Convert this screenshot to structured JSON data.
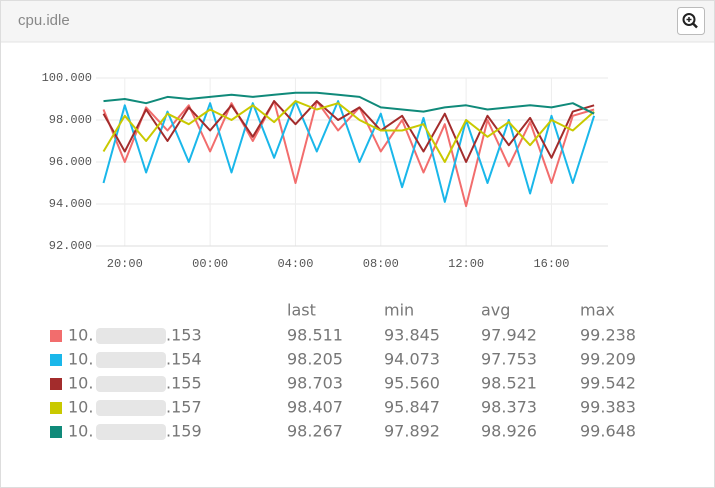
{
  "panel": {
    "title": "cpu.idle"
  },
  "chart_data": {
    "type": "line",
    "categories": [
      null,
      "20:00",
      null,
      null,
      null,
      "00:00",
      null,
      null,
      null,
      "04:00",
      null,
      null,
      null,
      "08:00",
      null,
      null,
      null,
      "12:00",
      null,
      null,
      null,
      "16:00",
      null,
      null
    ],
    "series": [
      {
        "color": "#f26d6d",
        "values": [
          98.5,
          96.0,
          98.6,
          97.5,
          98.7,
          96.5,
          98.8,
          97.0,
          98.9,
          95.0,
          98.9,
          97.5,
          98.6,
          96.5,
          98.0,
          95.5,
          97.8,
          93.9,
          98.0,
          95.8,
          97.9,
          95.0,
          98.2,
          98.5
        ]
      },
      {
        "color": "#1ab7ea",
        "values": [
          95.0,
          98.7,
          95.5,
          98.4,
          96.0,
          98.8,
          95.5,
          98.8,
          96.2,
          98.9,
          96.5,
          98.9,
          96.0,
          98.3,
          94.8,
          98.1,
          94.1,
          98.0,
          95.0,
          98.0,
          94.5,
          98.2,
          95.0,
          98.2
        ]
      },
      {
        "color": "#a32c2c",
        "values": [
          98.3,
          96.5,
          98.5,
          97.0,
          98.6,
          97.5,
          98.7,
          97.2,
          98.9,
          97.8,
          98.9,
          98.0,
          98.6,
          97.5,
          98.2,
          96.5,
          98.3,
          96.0,
          98.2,
          96.8,
          98.1,
          96.2,
          98.4,
          98.7
        ]
      },
      {
        "color": "#c9c900",
        "values": [
          96.5,
          98.2,
          97.0,
          98.3,
          97.8,
          98.5,
          98.0,
          98.7,
          97.9,
          98.9,
          98.5,
          98.8,
          98.0,
          97.5,
          97.5,
          97.8,
          96.0,
          98.0,
          97.2,
          97.9,
          96.8,
          98.0,
          97.5,
          98.4
        ]
      },
      {
        "color": "#108a7a",
        "values": [
          98.9,
          99.0,
          98.8,
          99.1,
          99.0,
          99.1,
          99.2,
          99.1,
          99.2,
          99.3,
          99.3,
          99.2,
          99.1,
          98.6,
          98.5,
          98.4,
          98.6,
          98.7,
          98.5,
          98.6,
          98.7,
          98.6,
          98.8,
          98.3
        ]
      }
    ],
    "ylim": [
      92,
      100
    ],
    "yticks": [
      {
        "value": 92,
        "label": "92.000"
      },
      {
        "value": 94,
        "label": "94.000"
      },
      {
        "value": 96,
        "label": "96.000"
      },
      {
        "value": 98,
        "label": "98.000"
      },
      {
        "value": 100,
        "label": "100.000"
      }
    ],
    "grid": true
  },
  "legend_table": {
    "columns": [
      "last",
      "min",
      "avg",
      "max"
    ],
    "rows": [
      {
        "prefix": "10.",
        "suffix": ".153",
        "cells": [
          "98.511",
          "93.845",
          "97.942",
          "99.238"
        ]
      },
      {
        "prefix": "10.",
        "suffix": ".154",
        "cells": [
          "98.205",
          "94.073",
          "97.753",
          "99.209"
        ]
      },
      {
        "prefix": "10.",
        "suffix": ".155",
        "cells": [
          "98.703",
          "95.560",
          "98.521",
          "99.542"
        ]
      },
      {
        "prefix": "10.",
        "suffix": ".157",
        "cells": [
          "98.407",
          "95.847",
          "98.373",
          "99.383"
        ]
      },
      {
        "prefix": "10.",
        "suffix": ".159",
        "cells": [
          "98.267",
          "97.892",
          "98.926",
          "99.648"
        ]
      }
    ]
  }
}
